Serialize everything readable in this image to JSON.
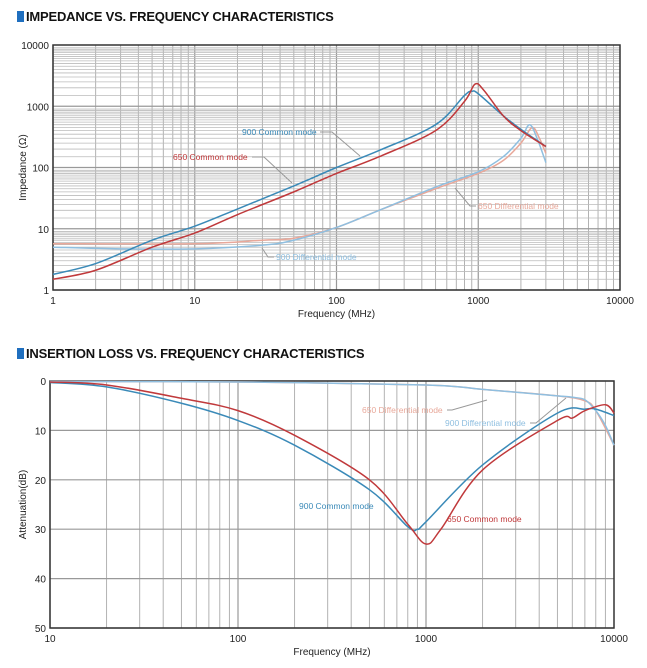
{
  "chart_data": [
    {
      "type": "line",
      "title": "IMPEDANCE VS. FREQUENCY CHARACTERISTICS",
      "xlabel": "Frequency (MHz)",
      "ylabel": "Impedance (Ω)",
      "x_scale": "log",
      "y_scale": "log",
      "xlim": [
        1,
        10000
      ],
      "ylim": [
        1,
        10000
      ],
      "x_ticks": [
        "1",
        "10",
        "100",
        "1000",
        "10000"
      ],
      "y_ticks": [
        "1",
        "10",
        "100",
        "1000",
        "10000"
      ],
      "grid": true,
      "series": [
        {
          "name": "900 Common mode",
          "color": "#3a8ab8",
          "x": [
            1,
            2,
            5,
            10,
            20,
            50,
            100,
            200,
            500,
            800,
            900,
            1000,
            1500,
            2000,
            3000
          ],
          "y": [
            1.8,
            2.7,
            6.5,
            11,
            21,
            50,
            100,
            190,
            500,
            1500,
            1750,
            1600,
            700,
            420,
            220
          ]
        },
        {
          "name": "650 Common mode",
          "color": "#c0393b",
          "x": [
            1,
            2,
            5,
            10,
            20,
            50,
            100,
            200,
            500,
            800,
            950,
            1100,
            1500,
            2000,
            3000
          ],
          "y": [
            1.5,
            2.1,
            5,
            8.5,
            17,
            40,
            80,
            150,
            400,
            1200,
            2300,
            1800,
            700,
            400,
            220
          ]
        },
        {
          "name": "900 Differential mode",
          "color": "#8fbfe0",
          "x": [
            1,
            3,
            10,
            30,
            50,
            100,
            200,
            500,
            1000,
            1500,
            2000,
            2300,
            2600,
            3000
          ],
          "y": [
            5,
            4.7,
            4.7,
            5.4,
            6.5,
            10.5,
            20,
            48,
            85,
            150,
            300,
            500,
            300,
            120
          ]
        },
        {
          "name": "650 Differential mode",
          "color": "#e8a89a",
          "x": [
            1,
            10,
            30,
            50,
            100,
            200,
            500,
            1000,
            1500,
            2000,
            2400,
            2700,
            3000
          ],
          "y": [
            5.7,
            5.7,
            6.5,
            7,
            10.5,
            20,
            45,
            80,
            130,
            250,
            450,
            300,
            170
          ]
        }
      ]
    },
    {
      "type": "line",
      "title": "INSERTION LOSS VS. FREQUENCY CHARACTERISTICS",
      "xlabel": "Frequency (MHz)",
      "ylabel": "Attenuation(dB)",
      "x_scale": "log",
      "y_scale": "linear",
      "y_inverted": true,
      "xlim": [
        10,
        10000
      ],
      "ylim": [
        0,
        50
      ],
      "x_ticks": [
        "10",
        "100",
        "1000",
        "10000"
      ],
      "y_ticks": [
        "0",
        "10",
        "20",
        "30",
        "40",
        "50"
      ],
      "grid": true,
      "series": [
        {
          "name": "900 Common mode",
          "color": "#3a8ab8",
          "x": [
            10,
            20,
            50,
            100,
            200,
            500,
            800,
            900,
            1000,
            2000,
            5000,
            7000,
            8000,
            10000
          ],
          "y": [
            0.3,
            1.2,
            4.5,
            8,
            13,
            22,
            29.5,
            30,
            28.5,
            17,
            6.5,
            5.7,
            5.7,
            7
          ]
        },
        {
          "name": "650 Common mode",
          "color": "#c0393b",
          "x": [
            10,
            20,
            50,
            100,
            200,
            500,
            800,
            1000,
            1200,
            2000,
            5000,
            6000,
            7000,
            9000,
            10000
          ],
          "y": [
            0.2,
            0.8,
            3.5,
            6,
            11,
            20,
            29,
            33,
            30,
            18,
            8,
            7.5,
            6,
            4.8,
            6.5
          ]
        },
        {
          "name": "900 Differential mode",
          "color": "#8fbfe0",
          "x": [
            10,
            100,
            1000,
            2000,
            5000,
            6000,
            7000,
            8000,
            9000,
            10000
          ],
          "y": [
            0.1,
            0.2,
            0.8,
            1.7,
            3,
            3.3,
            3.8,
            6,
            9,
            13
          ]
        },
        {
          "name": "650 Differential mode",
          "color": "#e8a89a",
          "x": [
            10,
            100,
            1000,
            2000,
            5000,
            7000,
            8000,
            10000
          ],
          "y": [
            0.1,
            0.2,
            0.8,
            1.7,
            3,
            4,
            6,
            13
          ]
        }
      ]
    }
  ]
}
